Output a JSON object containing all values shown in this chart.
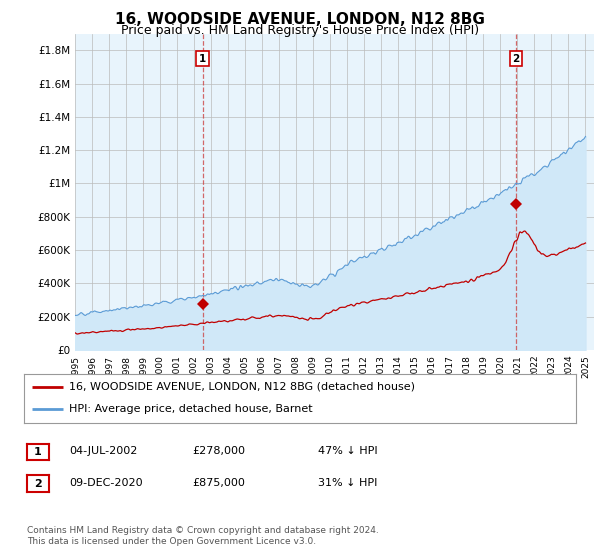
{
  "title": "16, WOODSIDE AVENUE, LONDON, N12 8BG",
  "subtitle": "Price paid vs. HM Land Registry's House Price Index (HPI)",
  "title_fontsize": 11,
  "subtitle_fontsize": 9,
  "ylim": [
    0,
    1900000
  ],
  "yticks": [
    0,
    200000,
    400000,
    600000,
    800000,
    1000000,
    1200000,
    1400000,
    1600000,
    1800000
  ],
  "ytick_labels": [
    "£0",
    "£200K",
    "£400K",
    "£600K",
    "£800K",
    "£1M",
    "£1.2M",
    "£1.4M",
    "£1.6M",
    "£1.8M"
  ],
  "xlim_start": 1995.0,
  "xlim_end": 2025.5,
  "hpi_color": "#5b9bd5",
  "hpi_fill_color": "#d0e8f8",
  "price_color": "#c00000",
  "marker1_date": 2002.5,
  "marker1_price": 278000,
  "marker2_date": 2020.92,
  "marker2_price": 875000,
  "legend_label1": "16, WOODSIDE AVENUE, LONDON, N12 8BG (detached house)",
  "legend_label2": "HPI: Average price, detached house, Barnet",
  "footer": "Contains HM Land Registry data © Crown copyright and database right 2024.\nThis data is licensed under the Open Government Licence v3.0.",
  "background_color": "#ffffff",
  "plot_bg_color": "#e8f4fc"
}
